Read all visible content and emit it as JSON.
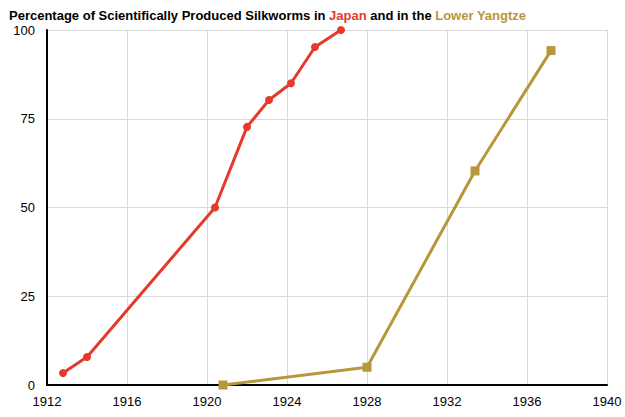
{
  "chart_data": {
    "type": "line",
    "title": "Percentage of Scientifically Produced Silkworms in Japan and in the Lower Yangtze",
    "series": [
      {
        "name": "Japan",
        "color": "#e5392b",
        "marker": "circle",
        "x": [
          1912.8,
          1914.0,
          1920.4,
          1922.0,
          1923.1,
          1924.2,
          1925.4,
          1926.7
        ],
        "values": [
          3.4,
          7.9,
          50,
          72.7,
          80.3,
          85,
          95.2,
          100
        ]
      },
      {
        "name": "Lower Yangtze",
        "color": "#b8963a",
        "marker": "square",
        "x": [
          1920.8,
          1928.0,
          1933.4,
          1937.2
        ],
        "values": [
          0,
          5,
          60.3,
          94.2
        ]
      }
    ],
    "xlim": [
      1912,
      1940
    ],
    "xticks": [
      1912,
      1916,
      1920,
      1924,
      1928,
      1932,
      1936,
      1940
    ],
    "ylim": [
      0,
      100
    ],
    "yticks": [
      0,
      25,
      50,
      75,
      100
    ],
    "grid": true
  }
}
